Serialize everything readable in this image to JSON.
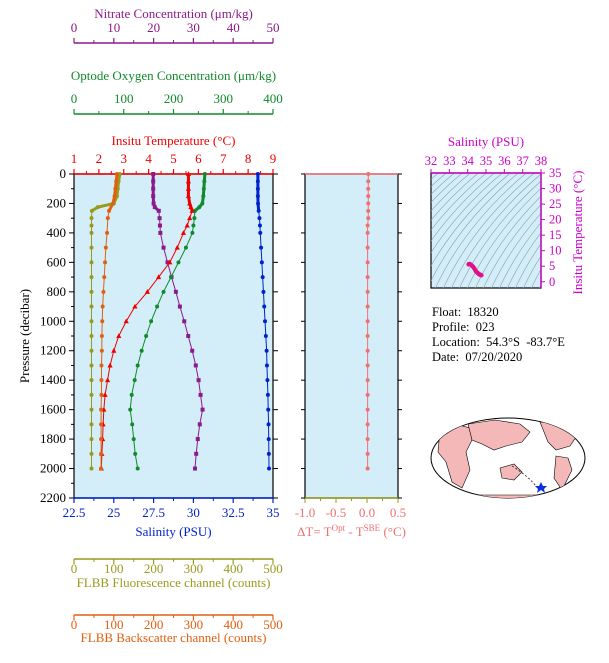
{
  "colors": {
    "nitrate": "#8b1a8b",
    "oxygen": "#118a2a",
    "temperature": "#ee0000",
    "salinity": "#0022cc",
    "fluorescence": "#9a9a1e",
    "backscatter": "#e06010",
    "delta": "#f07070",
    "ts": "#cc00cc",
    "bg": "#d3eef8"
  },
  "info": {
    "float": "Float:  18320",
    "profile": "Profile:  023",
    "location": "Location:  54.3°S  -83.7°E",
    "date": "Date:  07/20/2020"
  },
  "map_label": "world-map-with-float-location",
  "chart_data": [
    {
      "type": "line",
      "id": "profiles",
      "ylabel": "Pressure (decibar)",
      "ylim": [
        0,
        2200
      ],
      "yticks": [
        0,
        200,
        400,
        600,
        800,
        1000,
        1200,
        1400,
        1600,
        1800,
        2000,
        2200
      ],
      "axes": [
        {
          "key": "nitrate",
          "label": "Nitrate Concentration (μm/kg)",
          "range": [
            0,
            50
          ],
          "ticks": [
            0,
            10,
            20,
            30,
            40,
            50
          ],
          "position": "top-1"
        },
        {
          "key": "oxygen",
          "label": "Optode Oxygen Concentration (μm/kg)",
          "range": [
            0,
            400
          ],
          "ticks": [
            0,
            100,
            200,
            300,
            400
          ],
          "position": "top-2"
        },
        {
          "key": "temperature",
          "label": "Insitu Temperature (°C)",
          "range": [
            1,
            9
          ],
          "ticks": [
            1,
            2,
            3,
            4,
            5,
            6,
            7,
            8,
            9
          ],
          "position": "top-3"
        },
        {
          "key": "salinity",
          "label": "Salinity (PSU)",
          "range": [
            22.5,
            35.0
          ],
          "ticks": [
            22.5,
            25.0,
            27.5,
            30.0,
            32.5,
            35.0
          ],
          "position": "bottom-1"
        },
        {
          "key": "fluorescence",
          "label": "FLBB Fluorescence channel (counts)",
          "range": [
            0,
            500
          ],
          "ticks": [
            0,
            100,
            200,
            300,
            400,
            500
          ],
          "position": "bottom-2"
        },
        {
          "key": "backscatter",
          "label": "FLBB Backscatter channel (counts)",
          "range": [
            0,
            500
          ],
          "ticks": [
            0,
            100,
            200,
            300,
            400,
            500
          ],
          "position": "bottom-3"
        }
      ],
      "series": [
        {
          "key": "nitrate",
          "marker": "square",
          "values": [
            [
              19.9,
              0
            ],
            [
              19.9,
              50
            ],
            [
              19.9,
              100
            ],
            [
              19.9,
              150
            ],
            [
              20,
              200
            ],
            [
              20.3,
              225
            ],
            [
              21.3,
              250
            ],
            [
              21.5,
              300
            ],
            [
              21.6,
              350
            ],
            [
              21.7,
              400
            ],
            [
              22.5,
              500
            ],
            [
              23.5,
              600
            ],
            [
              24.5,
              700
            ],
            [
              25.6,
              800
            ],
            [
              26.6,
              900
            ],
            [
              27.7,
              1000
            ],
            [
              28.7,
              1100
            ],
            [
              29.7,
              1200
            ],
            [
              30.6,
              1300
            ],
            [
              31.3,
              1400
            ],
            [
              31.8,
              1500
            ],
            [
              32.3,
              1600
            ],
            [
              31.6,
              1700
            ],
            [
              31.1,
              1800
            ],
            [
              30.7,
              1900
            ],
            [
              30.4,
              2000
            ]
          ]
        },
        {
          "key": "oxygen",
          "marker": "circle",
          "values": [
            [
              263,
              0
            ],
            [
              262,
              50
            ],
            [
              261,
              100
            ],
            [
              260,
              150
            ],
            [
              258,
              200
            ],
            [
              252,
              225
            ],
            [
              243,
              250
            ],
            [
              242,
              300
            ],
            [
              240,
              350
            ],
            [
              238,
              400
            ],
            [
              225,
              500
            ],
            [
              210,
              600
            ],
            [
              195,
              700
            ],
            [
              180,
              800
            ],
            [
              167,
              900
            ],
            [
              155,
              1000
            ],
            [
              145,
              1100
            ],
            [
              136,
              1200
            ],
            [
              128,
              1300
            ],
            [
              122,
              1400
            ],
            [
              116,
              1500
            ],
            [
              113,
              1600
            ],
            [
              117,
              1700
            ],
            [
              120,
              1800
            ],
            [
              123,
              1900
            ],
            [
              128,
              2000
            ]
          ]
        },
        {
          "key": "temperature",
          "marker": "triangle",
          "values": [
            [
              5.6,
              0
            ],
            [
              5.6,
              50
            ],
            [
              5.6,
              100
            ],
            [
              5.6,
              150
            ],
            [
              5.65,
              200
            ],
            [
              5.7,
              225
            ],
            [
              5.75,
              250
            ],
            [
              5.65,
              300
            ],
            [
              5.55,
              350
            ],
            [
              5.4,
              400
            ],
            [
              5.15,
              500
            ],
            [
              4.85,
              600
            ],
            [
              4.4,
              700
            ],
            [
              3.95,
              800
            ],
            [
              3.45,
              900
            ],
            [
              3.1,
              1000
            ],
            [
              2.8,
              1100
            ],
            [
              2.6,
              1200
            ],
            [
              2.45,
              1300
            ],
            [
              2.35,
              1400
            ],
            [
              2.25,
              1500
            ],
            [
              2.2,
              1600
            ],
            [
              2.17,
              1700
            ],
            [
              2.15,
              1800
            ],
            [
              2.12,
              1900
            ],
            [
              2.1,
              2000
            ]
          ]
        },
        {
          "key": "salinity",
          "marker": "circle",
          "values": [
            [
              34.05,
              0
            ],
            [
              34.05,
              50
            ],
            [
              34.05,
              100
            ],
            [
              34.05,
              150
            ],
            [
              34.06,
              200
            ],
            [
              34.1,
              250
            ],
            [
              34.15,
              300
            ],
            [
              34.18,
              350
            ],
            [
              34.2,
              400
            ],
            [
              34.25,
              500
            ],
            [
              34.3,
              600
            ],
            [
              34.35,
              700
            ],
            [
              34.4,
              800
            ],
            [
              34.45,
              900
            ],
            [
              34.5,
              1000
            ],
            [
              34.55,
              1100
            ],
            [
              34.6,
              1200
            ],
            [
              34.62,
              1300
            ],
            [
              34.65,
              1400
            ],
            [
              34.68,
              1500
            ],
            [
              34.7,
              1600
            ],
            [
              34.72,
              1700
            ],
            [
              34.73,
              1800
            ],
            [
              34.74,
              1900
            ],
            [
              34.75,
              2000
            ]
          ]
        },
        {
          "key": "fluorescence",
          "marker": "circle",
          "values": [
            [
              115,
              0
            ],
            [
              112,
              50
            ],
            [
              110,
              100
            ],
            [
              108,
              150
            ],
            [
              100,
              200
            ],
            [
              60,
              225
            ],
            [
              45,
              250
            ],
            [
              44,
              300
            ],
            [
              44,
              350
            ],
            [
              44,
              400
            ],
            [
              44,
              500
            ],
            [
              44,
              600
            ],
            [
              44,
              700
            ],
            [
              44,
              800
            ],
            [
              44,
              900
            ],
            [
              44,
              1000
            ],
            [
              44,
              1100
            ],
            [
              44,
              1200
            ],
            [
              44,
              1300
            ],
            [
              44,
              1400
            ],
            [
              44,
              1500
            ],
            [
              44,
              1600
            ],
            [
              44,
              1700
            ],
            [
              44,
              1800
            ],
            [
              44,
              1900
            ],
            [
              44,
              2000
            ]
          ]
        },
        {
          "key": "backscatter",
          "marker": "circle",
          "values": [
            [
              108,
              0
            ],
            [
              106,
              50
            ],
            [
              104,
              100
            ],
            [
              102,
              150
            ],
            [
              98,
              200
            ],
            [
              88,
              250
            ],
            [
              85,
              300
            ],
            [
              83,
              400
            ],
            [
              80,
              500
            ],
            [
              78,
              600
            ],
            [
              76,
              700
            ],
            [
              74,
              800
            ],
            [
              72,
              900
            ],
            [
              71,
              1000
            ],
            [
              70,
              1100
            ],
            [
              70,
              1200
            ],
            [
              69,
              1300
            ],
            [
              69,
              1400
            ],
            [
              69,
              1500
            ],
            [
              68,
              1600
            ],
            [
              68,
              1700
            ],
            [
              68,
              1800
            ],
            [
              68,
              1900
            ],
            [
              68,
              2000
            ]
          ]
        }
      ]
    },
    {
      "type": "line",
      "id": "delta",
      "xlabel": "ΔT= T^Opt - T^SBE (°C)",
      "xlabel_main": "ΔT= T",
      "xlabel_sup1": "Opt",
      "xlabel_mid": " - T",
      "xlabel_sup2": "SBE",
      "xlabel_end": " (°C)",
      "xlim": [
        -1.0,
        0.5
      ],
      "xticks": [
        -1.0,
        -0.5,
        0.0,
        0.5
      ],
      "xtick_labels": [
        "-1.0",
        "-0.5",
        "0.0",
        "0.5"
      ],
      "ylim": [
        0,
        2200
      ],
      "values": [
        [
          0.02,
          0
        ],
        [
          0.02,
          50
        ],
        [
          0.02,
          100
        ],
        [
          0.02,
          150
        ],
        [
          0.02,
          200
        ],
        [
          0.02,
          250
        ],
        [
          0.02,
          300
        ],
        [
          0.01,
          350
        ],
        [
          0.01,
          400
        ],
        [
          0.01,
          500
        ],
        [
          0.01,
          600
        ],
        [
          0.01,
          700
        ],
        [
          0.01,
          800
        ],
        [
          0.01,
          900
        ],
        [
          0.01,
          1000
        ],
        [
          0.01,
          1100
        ],
        [
          0.01,
          1200
        ],
        [
          0.01,
          1300
        ],
        [
          0.01,
          1400
        ],
        [
          0.01,
          1500
        ],
        [
          0.01,
          1600
        ],
        [
          0.01,
          1700
        ],
        [
          0.01,
          1800
        ],
        [
          0.01,
          1900
        ],
        [
          0.01,
          2000
        ]
      ]
    },
    {
      "type": "scatter",
      "id": "ts",
      "title": "Salinity (PSU)",
      "ylabel": "Insitu Temperature (°C)",
      "xlim": [
        32,
        38
      ],
      "xticks": [
        32,
        33,
        34,
        35,
        36,
        37,
        38
      ],
      "ylim": [
        -2,
        35
      ],
      "yticks": [
        0,
        5,
        10,
        15,
        20,
        25,
        30,
        35
      ],
      "values": [
        [
          34.05,
          5.6
        ],
        [
          34.06,
          5.65
        ],
        [
          34.1,
          5.75
        ],
        [
          34.15,
          5.6
        ],
        [
          34.2,
          5.4
        ],
        [
          34.25,
          5.1
        ],
        [
          34.3,
          4.8
        ],
        [
          34.35,
          4.4
        ],
        [
          34.4,
          3.9
        ],
        [
          34.45,
          3.4
        ],
        [
          34.5,
          3.1
        ],
        [
          34.55,
          2.8
        ],
        [
          34.6,
          2.6
        ],
        [
          34.62,
          2.45
        ],
        [
          34.65,
          2.35
        ],
        [
          34.68,
          2.25
        ],
        [
          34.7,
          2.2
        ],
        [
          34.72,
          2.17
        ],
        [
          34.75,
          2.1
        ]
      ]
    }
  ]
}
